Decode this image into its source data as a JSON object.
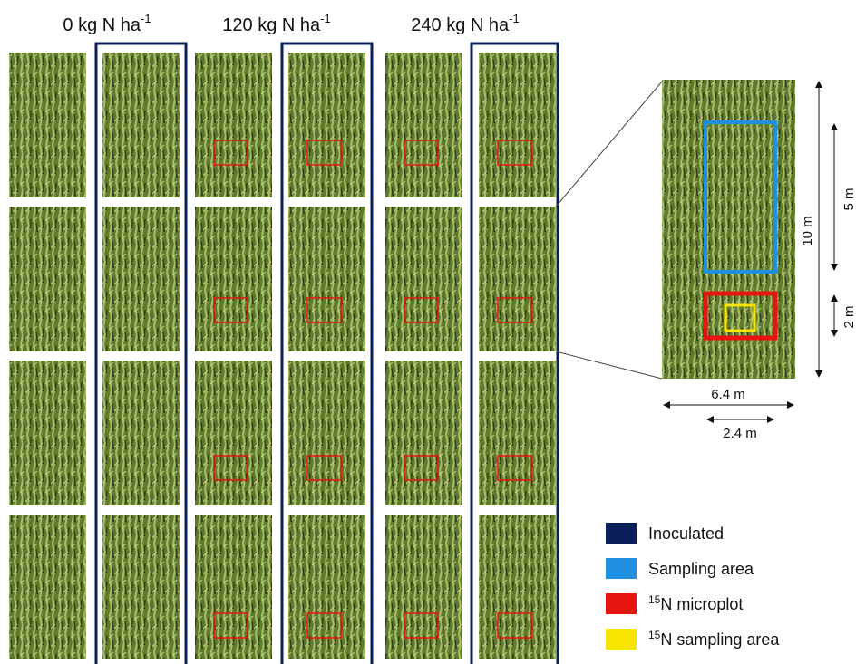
{
  "headers": [
    {
      "text": "0 kg N ha",
      "superscript": "-1"
    },
    {
      "text": "120 kg N ha",
      "superscript": "-1"
    },
    {
      "text": "240 kg N ha",
      "superscript": "-1"
    }
  ],
  "dimensions": {
    "plot_length": "10 m",
    "sampling_length": "5 m",
    "microplot_length": "2 m",
    "plot_width": "6.4 m",
    "microplot_width": "2.4 m"
  },
  "legend": [
    {
      "label": "Inoculated",
      "color": "#0b1f5a"
    },
    {
      "label": "Sampling area",
      "color": "#1f8fe0"
    },
    {
      "superscript": "15",
      "label": "N microplot",
      "color": "#e8140f"
    },
    {
      "superscript": "15",
      "label": "N sampling area",
      "color": "#f7e400"
    }
  ]
}
